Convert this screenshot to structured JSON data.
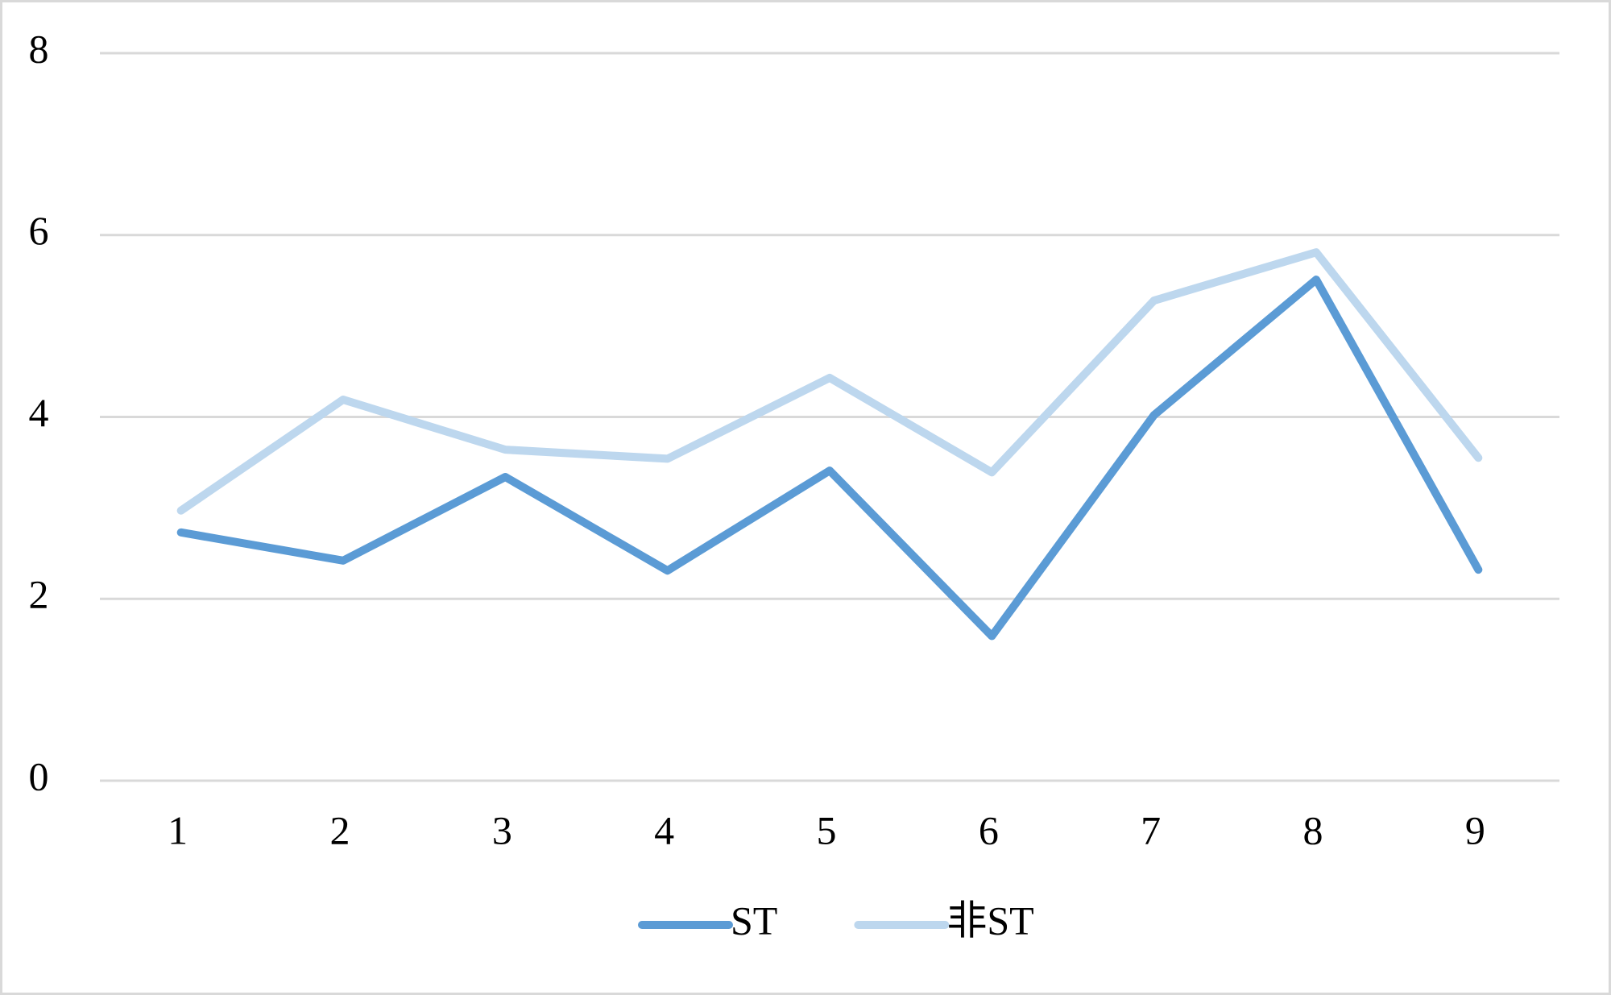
{
  "chart_data": {
    "type": "line",
    "categories": [
      "1",
      "2",
      "3",
      "4",
      "5",
      "6",
      "7",
      "8",
      "9"
    ],
    "series": [
      {
        "name": "ST",
        "color": "#5b9bd5",
        "values": [
          2.73,
          2.42,
          3.34,
          2.31,
          3.41,
          1.59,
          4.02,
          5.51,
          2.32
        ]
      },
      {
        "name": "非ST",
        "color": "#bdd7ee",
        "values": [
          2.97,
          4.19,
          3.64,
          3.54,
          4.43,
          3.39,
          5.28,
          5.81,
          3.55
        ]
      }
    ],
    "ylim": [
      0,
      8
    ],
    "yticks": [
      0,
      2,
      4,
      6,
      8
    ],
    "grid": true,
    "legend": "bottom"
  }
}
